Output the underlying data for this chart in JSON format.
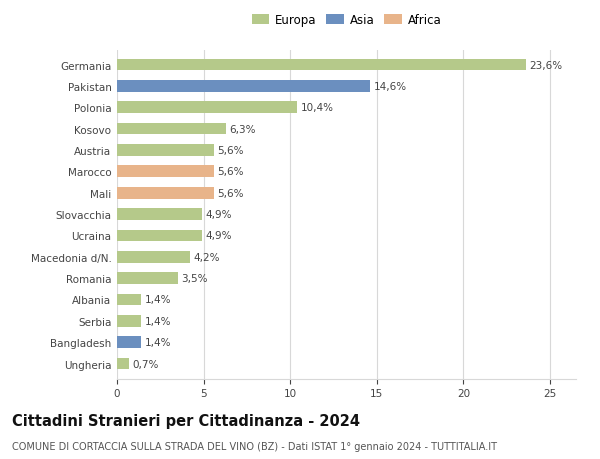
{
  "countries": [
    "Germania",
    "Pakistan",
    "Polonia",
    "Kosovo",
    "Austria",
    "Marocco",
    "Mali",
    "Slovacchia",
    "Ucraina",
    "Macedonia d/N.",
    "Romania",
    "Albania",
    "Serbia",
    "Bangladesh",
    "Ungheria"
  ],
  "values": [
    23.6,
    14.6,
    10.4,
    6.3,
    5.6,
    5.6,
    5.6,
    4.9,
    4.9,
    4.2,
    3.5,
    1.4,
    1.4,
    1.4,
    0.7
  ],
  "labels": [
    "23,6%",
    "14,6%",
    "10,4%",
    "6,3%",
    "5,6%",
    "5,6%",
    "5,6%",
    "4,9%",
    "4,9%",
    "4,2%",
    "3,5%",
    "1,4%",
    "1,4%",
    "1,4%",
    "0,7%"
  ],
  "colors": [
    "#b5c98a",
    "#6b8fbf",
    "#b5c98a",
    "#b5c98a",
    "#b5c98a",
    "#e8b48a",
    "#e8b48a",
    "#b5c98a",
    "#b5c98a",
    "#b5c98a",
    "#b5c98a",
    "#b5c98a",
    "#b5c98a",
    "#6b8fbf",
    "#b5c98a"
  ],
  "legend_labels": [
    "Europa",
    "Asia",
    "Africa"
  ],
  "legend_colors": [
    "#b5c98a",
    "#6b8fbf",
    "#e8b48a"
  ],
  "title": "Cittadini Stranieri per Cittadinanza - 2024",
  "subtitle": "COMUNE DI CORTACCIA SULLA STRADA DEL VINO (BZ) - Dati ISTAT 1° gennaio 2024 - TUTTITALIA.IT",
  "xlim": [
    0,
    26.5
  ],
  "xticks": [
    0,
    5,
    10,
    15,
    20,
    25
  ],
  "bg_color": "#ffffff",
  "grid_color": "#d8d8d8",
  "bar_height": 0.55,
  "label_fontsize": 7.5,
  "tick_fontsize": 7.5,
  "title_fontsize": 10.5,
  "subtitle_fontsize": 7.0
}
